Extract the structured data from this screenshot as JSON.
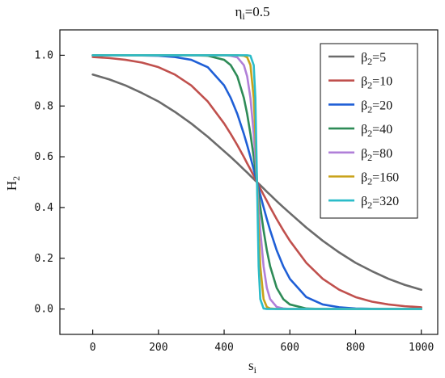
{
  "chart_data": {
    "type": "line",
    "title": "η",
    "title_sub": "i",
    "title_value": "=0.5",
    "xlabel": "s",
    "xlabel_sub": "i",
    "ylabel": "H",
    "ylabel_sub": "2",
    "xlim": [
      -100,
      1050
    ],
    "ylim": [
      -0.1,
      1.1
    ],
    "xticks": [
      0,
      200,
      400,
      600,
      800,
      1000
    ],
    "yticks": [
      0.0,
      0.2,
      0.4,
      0.6,
      0.8,
      1.0
    ],
    "ytick_labels": [
      "0.0",
      "0.2",
      "0.4",
      "0.6",
      "0.8",
      "1.0"
    ],
    "grid": false,
    "legend_placement": "top-right",
    "x": [
      0,
      50,
      100,
      150,
      200,
      250,
      300,
      350,
      400,
      420,
      440,
      460,
      470,
      480,
      490,
      495,
      500,
      505,
      510,
      520,
      530,
      540,
      560,
      580,
      600,
      650,
      700,
      750,
      800,
      850,
      900,
      950,
      1000
    ],
    "series": [
      {
        "name": "β",
        "sub": "2",
        "suffix": "=5",
        "color": "#6b6b6b",
        "values": [
          0.924,
          0.905,
          0.881,
          0.851,
          0.818,
          0.777,
          0.731,
          0.679,
          0.622,
          0.599,
          0.575,
          0.55,
          0.538,
          0.525,
          0.512,
          0.506,
          0.5,
          0.494,
          0.488,
          0.475,
          0.462,
          0.45,
          0.425,
          0.401,
          0.378,
          0.321,
          0.269,
          0.223,
          0.182,
          0.149,
          0.119,
          0.095,
          0.076
        ]
      },
      {
        "name": "β",
        "sub": "2",
        "suffix": "=10",
        "color": "#c0504d",
        "values": [
          0.993,
          0.989,
          0.982,
          0.971,
          0.953,
          0.924,
          0.881,
          0.818,
          0.731,
          0.69,
          0.646,
          0.599,
          0.574,
          0.55,
          0.525,
          0.512,
          0.5,
          0.488,
          0.475,
          0.45,
          0.426,
          0.401,
          0.354,
          0.31,
          0.269,
          0.182,
          0.119,
          0.076,
          0.047,
          0.029,
          0.018,
          0.011,
          0.007
        ]
      },
      {
        "name": "β",
        "sub": "2",
        "suffix": "=20",
        "color": "#1f5fd6",
        "values": [
          1.0,
          1.0,
          1.0,
          0.999,
          0.998,
          0.993,
          0.982,
          0.953,
          0.881,
          0.832,
          0.769,
          0.69,
          0.646,
          0.599,
          0.55,
          0.525,
          0.5,
          0.475,
          0.45,
          0.401,
          0.354,
          0.31,
          0.231,
          0.168,
          0.119,
          0.047,
          0.018,
          0.007,
          0.002,
          0.001,
          0.0,
          0.0,
          0.0
        ]
      },
      {
        "name": "β",
        "sub": "2",
        "suffix": "=40",
        "color": "#2e8b57",
        "values": [
          1.0,
          1.0,
          1.0,
          1.0,
          1.0,
          1.0,
          1.0,
          0.998,
          0.982,
          0.961,
          0.917,
          0.832,
          0.769,
          0.69,
          0.599,
          0.55,
          0.5,
          0.45,
          0.401,
          0.31,
          0.231,
          0.168,
          0.083,
          0.039,
          0.018,
          0.002,
          0.0,
          0.0,
          0.0,
          0.0,
          0.0,
          0.0,
          0.0
        ]
      },
      {
        "name": "β",
        "sub": "2",
        "suffix": "=80",
        "color": "#b07fd8",
        "values": [
          1.0,
          1.0,
          1.0,
          1.0,
          1.0,
          1.0,
          1.0,
          1.0,
          1.0,
          0.998,
          0.992,
          0.961,
          0.917,
          0.832,
          0.69,
          0.599,
          0.5,
          0.401,
          0.31,
          0.168,
          0.083,
          0.039,
          0.008,
          0.002,
          0.0,
          0.0,
          0.0,
          0.0,
          0.0,
          0.0,
          0.0,
          0.0,
          0.0
        ]
      },
      {
        "name": "β",
        "sub": "2",
        "suffix": "=160",
        "color": "#c9a21a",
        "values": [
          1.0,
          1.0,
          1.0,
          1.0,
          1.0,
          1.0,
          1.0,
          1.0,
          1.0,
          1.0,
          1.0,
          0.998,
          0.992,
          0.961,
          0.832,
          0.69,
          0.5,
          0.31,
          0.168,
          0.039,
          0.008,
          0.002,
          0.0,
          0.0,
          0.0,
          0.0,
          0.0,
          0.0,
          0.0,
          0.0,
          0.0,
          0.0,
          0.0
        ]
      },
      {
        "name": "β",
        "sub": "2",
        "suffix": "=320",
        "color": "#2bbcc9",
        "values": [
          1.0,
          1.0,
          1.0,
          1.0,
          1.0,
          1.0,
          1.0,
          1.0,
          1.0,
          1.0,
          1.0,
          1.0,
          1.0,
          0.998,
          0.961,
          0.832,
          0.5,
          0.168,
          0.039,
          0.002,
          0.0,
          0.0,
          0.0,
          0.0,
          0.0,
          0.0,
          0.0,
          0.0,
          0.0,
          0.0,
          0.0,
          0.0,
          0.0
        ]
      }
    ]
  }
}
